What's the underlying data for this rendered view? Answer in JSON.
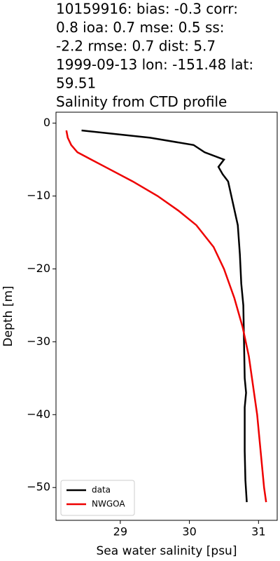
{
  "chart_data": {
    "type": "line",
    "title": [
      "10159916: bias: -0.3  corr:",
      "0.8  ioa: 0.7  mse: 0.5  ss:",
      "-2.2  rmse: 0.7  dist: 5.7",
      "1999-09-13 lon: -151.48 lat:",
      "59.51",
      "Salinity from CTD profile"
    ],
    "xlabel": "Sea water salinity [psu]",
    "ylabel": "Depth [m]",
    "xlim": [
      28.07,
      31.27
    ],
    "ylim": [
      -54.5,
      1.5
    ],
    "xticks": [
      29,
      30,
      31
    ],
    "yticks": [
      0,
      {
        "value": -10,
        "label": "−10"
      },
      {
        "value": -20,
        "label": "−20"
      },
      {
        "value": -30,
        "label": "−30"
      },
      {
        "value": -40,
        "label": "−40"
      },
      {
        "value": -50,
        "label": "−50"
      }
    ],
    "legend": "lower left",
    "series": [
      {
        "name": "data",
        "color": "#000000",
        "x": [
          28.44,
          29.43,
          30.06,
          30.22,
          30.5,
          30.42,
          30.48,
          30.56,
          30.63,
          30.7,
          30.73,
          30.75,
          30.78,
          30.79,
          30.8,
          30.82,
          30.8,
          30.8,
          30.81,
          30.83
        ],
        "values": [
          -1,
          -2,
          -3,
          -4,
          -5,
          -6,
          -7,
          -8,
          -11,
          -14,
          -18,
          -22,
          -25,
          -30,
          -35,
          -37,
          -39,
          -45,
          -49,
          -52
        ]
      },
      {
        "name": "NWGOA",
        "color": "#ee0000",
        "x": [
          28.22,
          28.24,
          28.29,
          28.38,
          28.78,
          29.18,
          29.54,
          29.84,
          30.1,
          30.35,
          30.5,
          30.65,
          30.77,
          30.86,
          30.92,
          30.98,
          31.03,
          31.08,
          31.11
        ],
        "values": [
          -1,
          -2,
          -3,
          -4,
          -6,
          -8,
          -10,
          -12,
          -14,
          -17,
          -20,
          -24,
          -28,
          -32,
          -36,
          -40,
          -45,
          -50,
          -52
        ]
      }
    ]
  }
}
